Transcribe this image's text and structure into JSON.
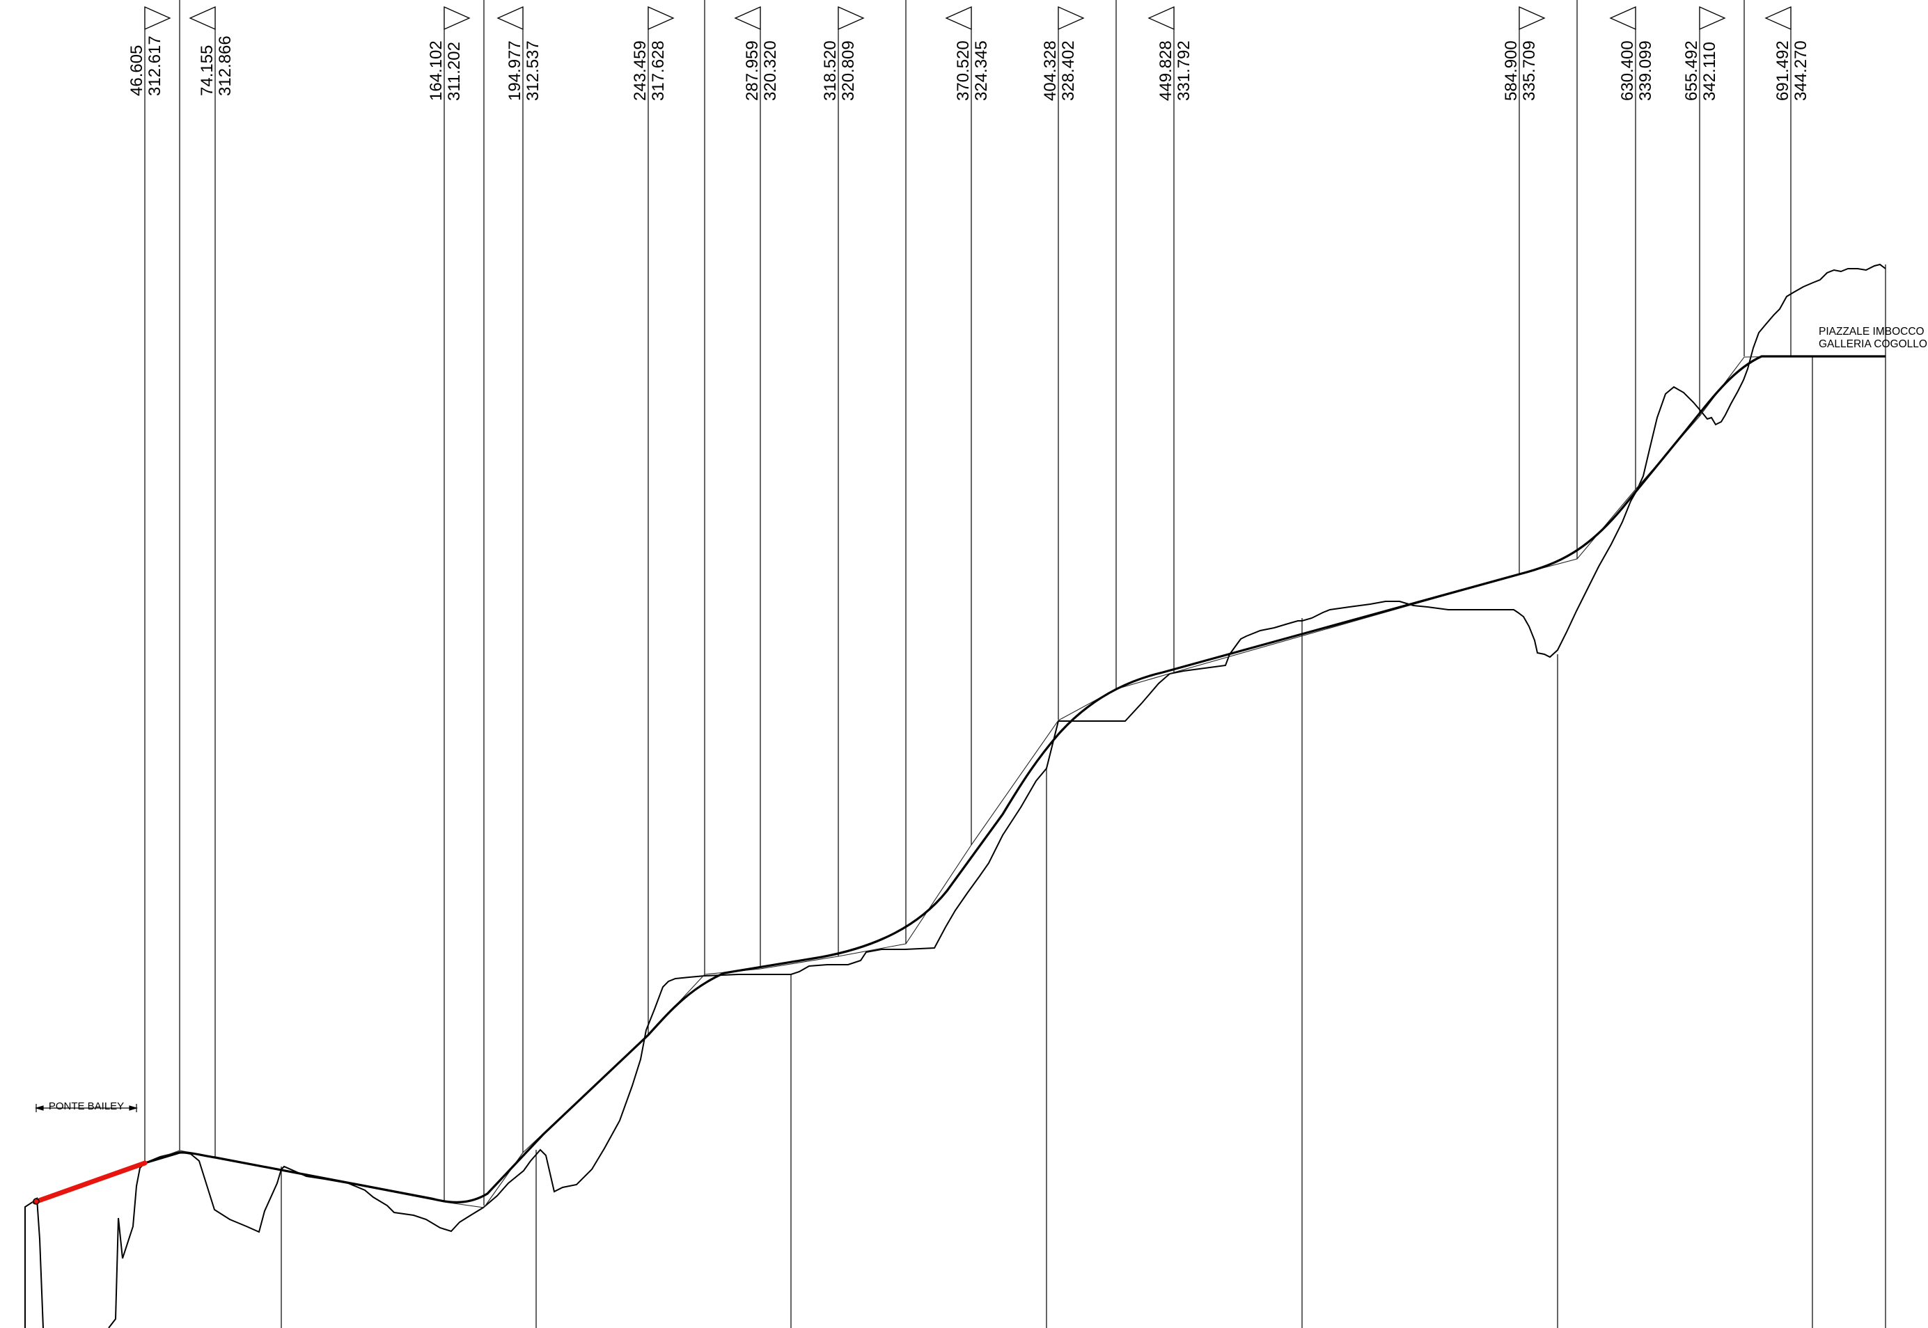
{
  "chart_data": {
    "type": "longitudinal-profile",
    "vertices": [
      {
        "station": "46.605",
        "elevation": "312.617",
        "marker": "right"
      },
      {
        "station": "74.155",
        "elevation": "312.866",
        "marker": "left"
      },
      {
        "station": "164.102",
        "elevation": "311.202",
        "marker": "right"
      },
      {
        "station": "194.977",
        "elevation": "312.537",
        "marker": "left"
      },
      {
        "station": "243.459",
        "elevation": "317.628",
        "marker": "right"
      },
      {
        "station": "287.959",
        "elevation": "320.320",
        "marker": "left"
      },
      {
        "station": "318.520",
        "elevation": "320.809",
        "marker": "right"
      },
      {
        "station": "370.520",
        "elevation": "324.345",
        "marker": "left"
      },
      {
        "station": "404.328",
        "elevation": "328.402",
        "marker": "right"
      },
      {
        "station": "449.828",
        "elevation": "331.792",
        "marker": "left"
      },
      {
        "station": "584.900",
        "elevation": "335.709",
        "marker": "right"
      },
      {
        "station": "630.400",
        "elevation": "339.099",
        "marker": "left"
      },
      {
        "station": "655.492",
        "elevation": "342.110",
        "marker": "right"
      },
      {
        "station": "691.492",
        "elevation": "344.270",
        "marker": "left"
      }
    ],
    "annotations": {
      "bridge": "PONTE BAILEY",
      "portal_line1": "PIAZZALE IMBOCCO",
      "portal_line2": "GALLERIA COGOLLO"
    },
    "colors": {
      "lines": "#000000",
      "bridge_segment": "#e8140e"
    }
  }
}
